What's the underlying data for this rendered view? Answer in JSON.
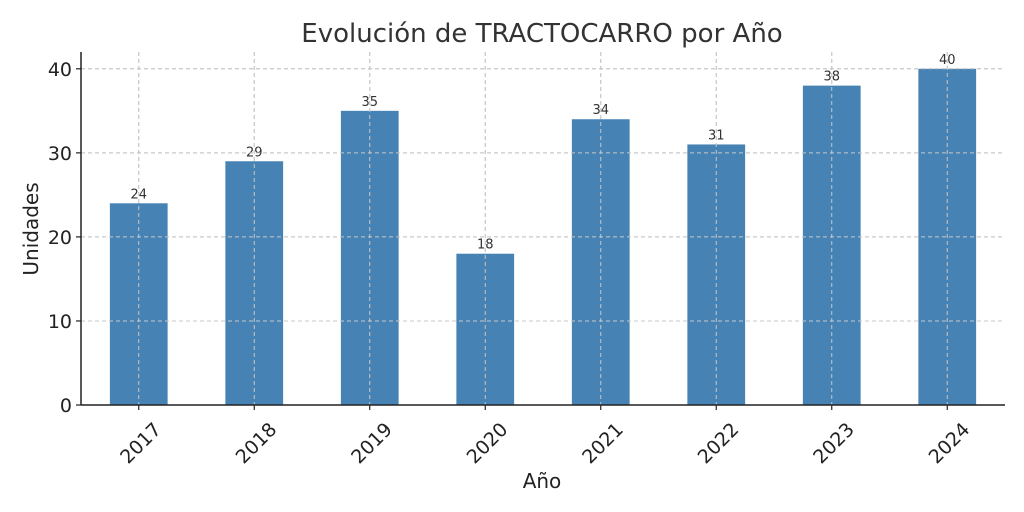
{
  "chart_data": {
    "type": "bar",
    "title": "Evolución de TRACTOCARRO por Año",
    "xlabel": "Año",
    "ylabel": "Unidades",
    "categories": [
      "2017",
      "2018",
      "2019",
      "2020",
      "2021",
      "2022",
      "2023",
      "2024"
    ],
    "values": [
      24,
      29,
      35,
      18,
      34,
      31,
      38,
      40
    ],
    "ylim": [
      0,
      42
    ],
    "yticks": [
      0,
      10,
      20,
      30,
      40
    ],
    "grid": true,
    "bar_color": "#4682b4",
    "data_labels": true
  }
}
